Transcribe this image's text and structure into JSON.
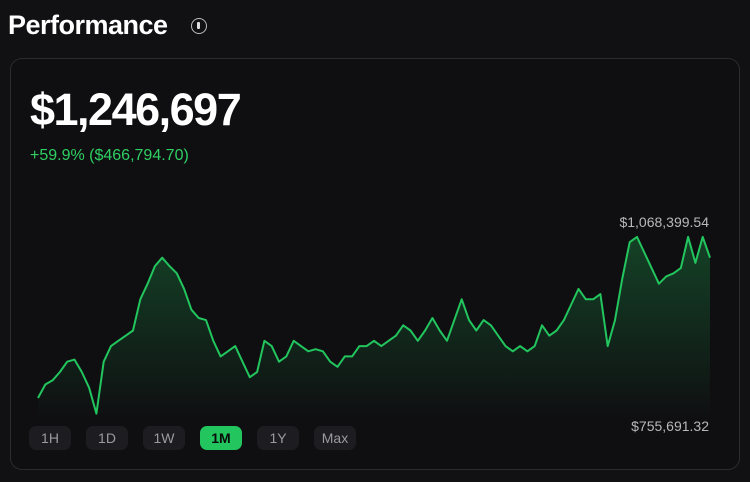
{
  "header": {
    "title": "Performance"
  },
  "card": {
    "value": "$1,246,697",
    "change": "+59.9% ($466,794.70)",
    "high_label": "$1,068,399.54",
    "low_label": "$755,691.32",
    "ranges": [
      "1H",
      "1D",
      "1W",
      "1M",
      "1Y",
      "Max"
    ],
    "active_index": 3
  },
  "chart_data": {
    "type": "line",
    "color": "#22c55e",
    "ylim": [
      750000,
      1075000
    ],
    "values": [
      786100,
      809300,
      816500,
      830800,
      848600,
      852200,
      830800,
      803900,
      759300,
      848600,
      875400,
      884400,
      893300,
      902200,
      955800,
      982600,
      1013000,
      1027300,
      1013000,
      1000500,
      973700,
      938000,
      923700,
      920100,
      884400,
      857600,
      866500,
      875400,
      848600,
      821800,
      830800,
      884400,
      875400,
      848600,
      857600,
      884400,
      875400,
      866500,
      870100,
      866500,
      848600,
      839700,
      857600,
      857600,
      875400,
      875400,
      884400,
      875400,
      884400,
      893300,
      911200,
      902200,
      884400,
      902200,
      923700,
      902200,
      884400,
      920100,
      955800,
      920100,
      902200,
      920100,
      911200,
      893300,
      875400,
      866500,
      875400,
      866500,
      875400,
      911200,
      893300,
      902200,
      920100,
      946900,
      973700,
      955800,
      955800,
      964800,
      875400,
      920100,
      991600,
      1054100,
      1063100,
      1036300,
      1009500,
      982600,
      995200,
      1000500,
      1009500,
      1063100,
      1018400,
      1063100,
      1027300
    ]
  }
}
